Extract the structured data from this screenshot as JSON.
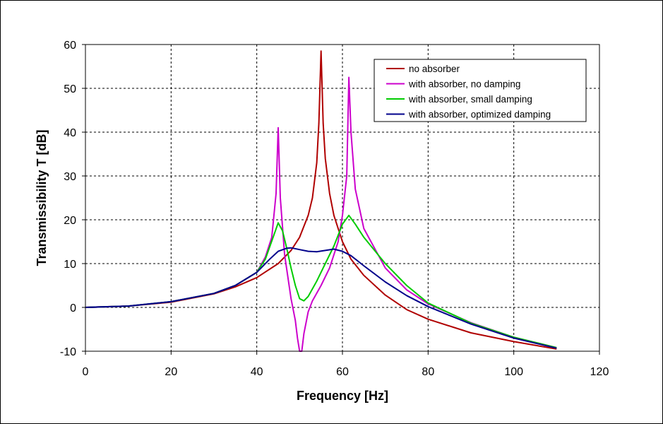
{
  "chart_data": {
    "type": "line",
    "title": "",
    "xlabel": "Frequency [Hz]",
    "ylabel": "Transmissibility T [dB]",
    "xlim": [
      0,
      120
    ],
    "ylim": [
      -10,
      60
    ],
    "xticks": [
      0,
      20,
      40,
      60,
      80,
      100,
      120
    ],
    "yticks": [
      -10,
      0,
      10,
      20,
      30,
      40,
      50,
      60
    ],
    "grid": true,
    "legend_position": "top-right",
    "series": [
      {
        "name": "no absorber",
        "color": "#b00000",
        "x": [
          0,
          10,
          20,
          30,
          35,
          40,
          45,
          48,
          50,
          52,
          53,
          54,
          54.5,
          55,
          55.5,
          56,
          57,
          58,
          60,
          62,
          65,
          70,
          75,
          80,
          90,
          100,
          110
        ],
        "y": [
          0,
          0.3,
          1.2,
          3.1,
          4.7,
          6.8,
          10.0,
          13.0,
          16.0,
          21.0,
          25.0,
          33.0,
          42.0,
          58.5,
          42.0,
          34.0,
          26.0,
          21.0,
          15.0,
          11.0,
          7.3,
          2.8,
          -0.5,
          -2.7,
          -5.8,
          -7.8,
          -9.5
        ]
      },
      {
        "name": "with absorber, no damping",
        "color": "#cc00cc",
        "x": [
          0,
          10,
          20,
          30,
          35,
          40,
          42,
          43.5,
          44.5,
          45,
          45.5,
          46.5,
          48,
          49,
          49.5,
          50,
          50.5,
          51,
          52,
          53,
          55,
          57,
          59,
          60,
          61,
          61.5,
          62,
          63,
          65,
          70,
          75,
          80,
          90,
          100,
          110
        ],
        "y": [
          0,
          0.3,
          1.3,
          3.2,
          5.0,
          8.0,
          11.5,
          16.0,
          26.0,
          41.0,
          25.0,
          12.0,
          2.0,
          -3.0,
          -7.0,
          -10.0,
          -10.0,
          -6.0,
          -1.0,
          1.5,
          5.0,
          9.0,
          15.0,
          21.0,
          30.0,
          52.5,
          40.0,
          27.0,
          18.0,
          9.0,
          4.0,
          0.8,
          -3.5,
          -6.8,
          -9.2
        ]
      },
      {
        "name": "with absorber, small damping",
        "color": "#00cc00",
        "x": [
          0,
          10,
          20,
          30,
          35,
          40,
          42,
          44,
          45,
          46,
          47,
          48,
          49,
          50,
          51,
          52,
          54,
          56,
          58,
          60,
          61.5,
          63,
          65,
          70,
          75,
          80,
          90,
          100,
          110
        ],
        "y": [
          0,
          0.3,
          1.3,
          3.2,
          5.0,
          8.0,
          11.0,
          16.5,
          19.3,
          17.5,
          13.5,
          9.0,
          5.0,
          2.0,
          1.5,
          2.5,
          6.0,
          10.0,
          14.0,
          19.0,
          21.0,
          19.0,
          16.0,
          10.0,
          5.0,
          1.0,
          -3.6,
          -6.8,
          -9.2
        ]
      },
      {
        "name": "with absorber, optimized damping",
        "color": "#00008b",
        "x": [
          0,
          10,
          20,
          30,
          35,
          40,
          43,
          45,
          47,
          48,
          50,
          52,
          54,
          56,
          58,
          60,
          62,
          65,
          70,
          75,
          80,
          90,
          100,
          110
        ],
        "y": [
          0,
          0.3,
          1.3,
          3.2,
          5.0,
          8.0,
          11.0,
          12.8,
          13.5,
          13.6,
          13.2,
          12.8,
          12.7,
          13.0,
          13.3,
          12.8,
          11.8,
          9.5,
          5.8,
          2.7,
          0.2,
          -3.8,
          -7.0,
          -9.3
        ]
      }
    ]
  }
}
